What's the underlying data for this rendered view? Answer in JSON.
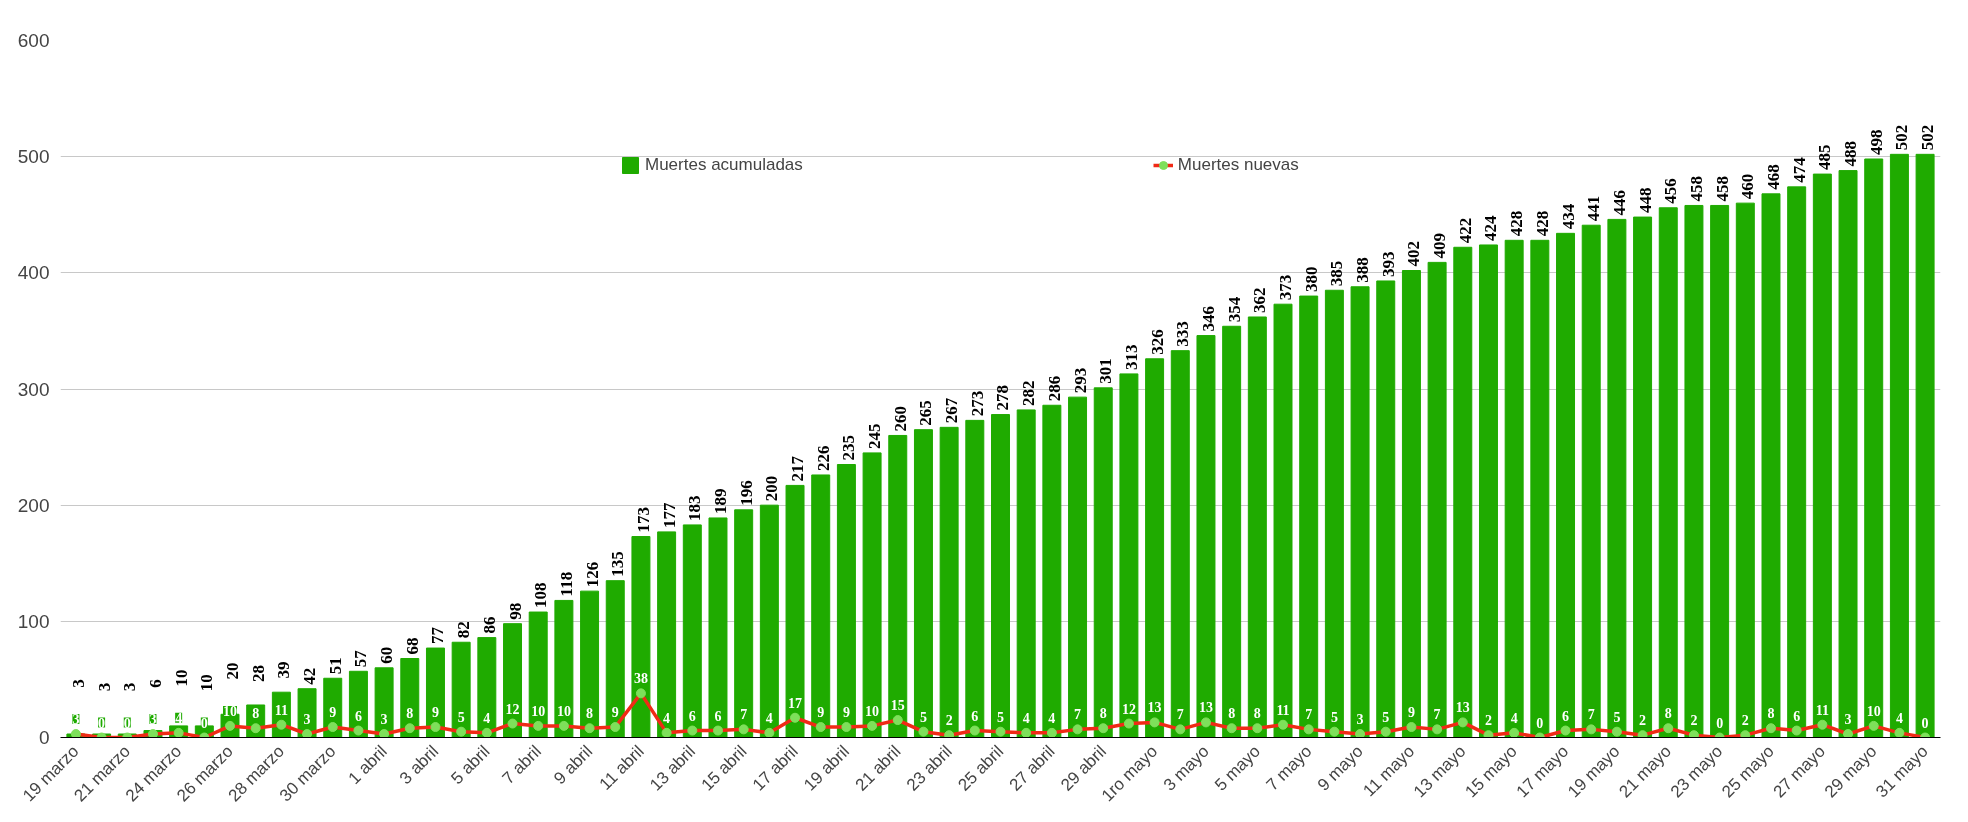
{
  "chart_data": {
    "type": "bar",
    "categories": [
      "19 marzo",
      null,
      "21 marzo",
      null,
      "24 marzo",
      null,
      "26 marzo",
      null,
      "28 marzo",
      null,
      "30 marzo",
      null,
      "1 abril",
      null,
      "3 abril",
      null,
      "5 abril",
      null,
      "7 abril",
      null,
      "9 abril",
      null,
      "11 abril",
      null,
      "13 abril",
      null,
      "15 abril",
      null,
      "17 abril",
      null,
      "19 abril",
      null,
      "21 abril",
      null,
      "23 abril",
      null,
      "25 abril",
      null,
      "27 abril",
      null,
      "29 abril",
      null,
      "1ro mayo",
      null,
      "3 mayo",
      null,
      "5 mayo",
      null,
      "7 mayo",
      null,
      "9 mayo",
      null,
      "11 mayo",
      null,
      "13 mayo",
      null,
      "15 mayo",
      null,
      "17 mayo",
      null,
      "19 mayo",
      null,
      "21 mayo",
      null,
      "23 mayo",
      null,
      "25 mayo",
      null,
      "27 mayo",
      null,
      "29 mayo",
      null,
      "31 mayo"
    ],
    "series": [
      {
        "name": "Muertes acumuladas",
        "color": "#1fab00",
        "values": [
          3,
          3,
          3,
          6,
          10,
          10,
          20,
          28,
          39,
          42,
          51,
          57,
          60,
          68,
          77,
          82,
          86,
          98,
          108,
          118,
          126,
          135,
          173,
          177,
          183,
          189,
          196,
          200,
          217,
          226,
          235,
          245,
          260,
          265,
          267,
          273,
          278,
          282,
          286,
          293,
          301,
          313,
          326,
          333,
          346,
          354,
          362,
          373,
          380,
          385,
          388,
          393,
          402,
          409,
          422,
          424,
          428,
          428,
          434,
          441,
          446,
          448,
          456,
          458,
          458,
          460,
          468,
          474,
          485,
          488,
          498,
          502,
          502
        ]
      },
      {
        "name": "Muertes nuevas",
        "type": "line",
        "color": "#f02a16",
        "values": [
          3,
          0,
          0,
          3,
          4,
          0,
          10,
          8,
          11,
          3,
          9,
          6,
          3,
          8,
          9,
          5,
          4,
          12,
          10,
          10,
          8,
          9,
          38,
          4,
          6,
          6,
          7,
          4,
          17,
          9,
          9,
          10,
          15,
          5,
          2,
          6,
          5,
          4,
          4,
          7,
          8,
          12,
          13,
          7,
          13,
          8,
          8,
          11,
          7,
          5,
          3,
          5,
          9,
          7,
          13,
          2,
          4,
          0,
          6,
          7,
          5,
          2,
          8,
          2,
          0,
          2,
          8,
          6,
          11,
          3,
          10,
          4,
          0
        ]
      }
    ],
    "ylim": [
      0,
      600
    ],
    "yticks": [
      0,
      100,
      200,
      300,
      400,
      500,
      600
    ],
    "grid": "y",
    "legend": "top",
    "marker": "circle",
    "line_style": "solid",
    "data_labels": true
  }
}
